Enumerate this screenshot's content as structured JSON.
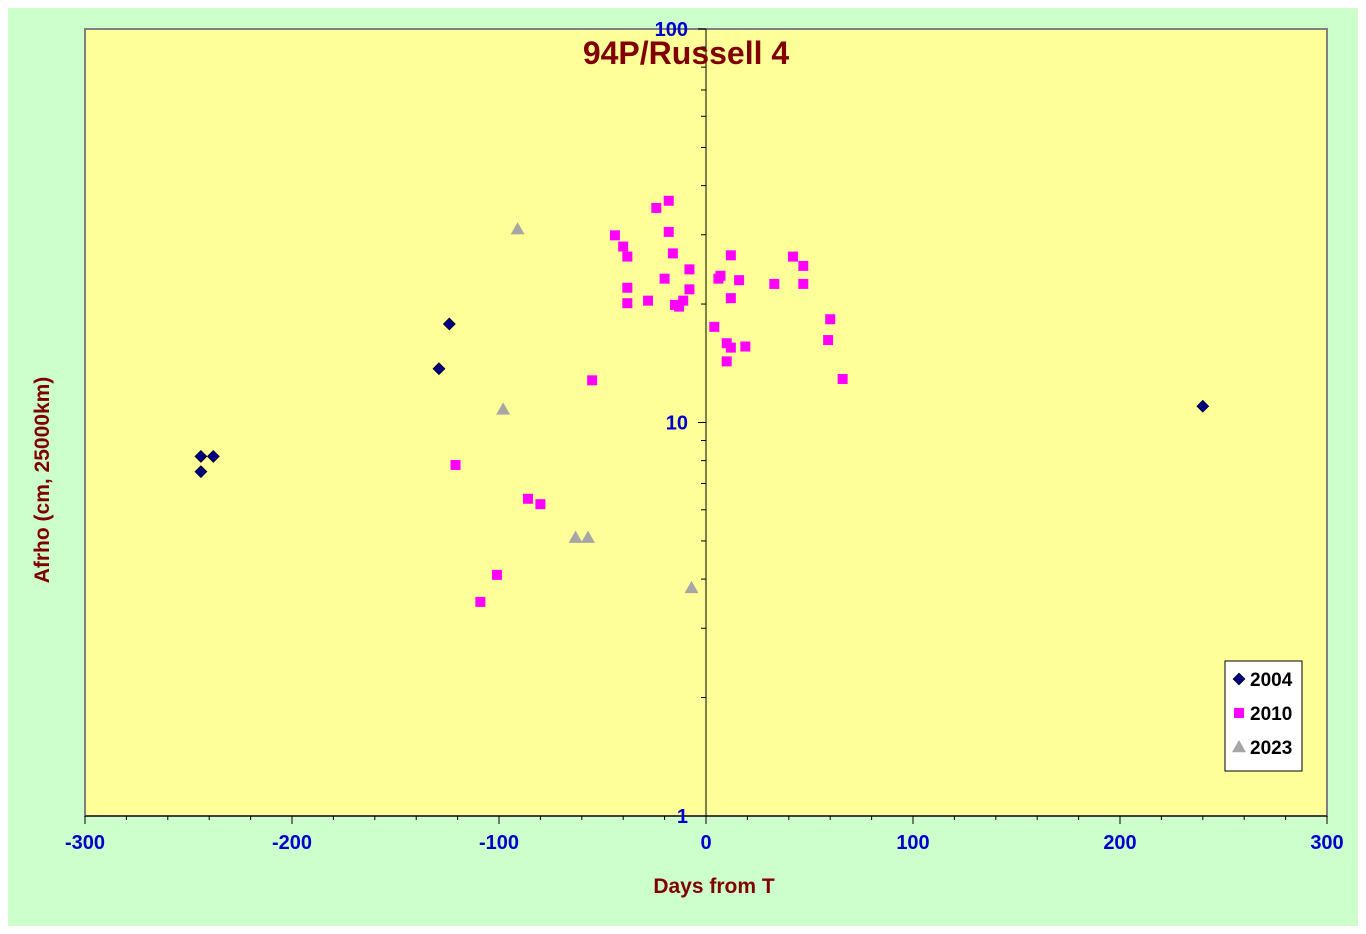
{
  "chart_data": {
    "type": "scatter",
    "title": "94P/Russell 4",
    "xlabel": "Days from T",
    "ylabel": "Afrho (cm, 25000km)",
    "xlim": [
      -300,
      300
    ],
    "ylim": [
      1,
      100
    ],
    "y_scale": "log",
    "x_ticks": [
      -300,
      -200,
      -100,
      0,
      100,
      200,
      300
    ],
    "y_ticks": [
      1,
      10,
      100
    ],
    "grid": false,
    "legend_position": "bottom-right",
    "colors": {
      "background": "#ccffcc",
      "plot_area": "#ffff99",
      "title": "#800000",
      "ticks": "#0000cc"
    },
    "series": [
      {
        "name": "2004",
        "marker": "diamond",
        "color": "#000080",
        "points": [
          [
            -244,
            8.2
          ],
          [
            -244,
            7.5
          ],
          [
            -238,
            8.2
          ],
          [
            -129,
            13.7
          ],
          [
            -124,
            17.8
          ],
          [
            240,
            11.0
          ]
        ]
      },
      {
        "name": "2010",
        "marker": "square",
        "color": "#ff00ff",
        "points": [
          [
            -121,
            7.8
          ],
          [
            -109,
            3.5
          ],
          [
            -101,
            4.1
          ],
          [
            -86,
            6.4
          ],
          [
            -80,
            6.2
          ],
          [
            -55,
            12.8
          ],
          [
            -44,
            29.9
          ],
          [
            -40,
            28.0
          ],
          [
            -38,
            26.4
          ],
          [
            -38,
            22.0
          ],
          [
            -38,
            20.1
          ],
          [
            -28,
            20.4
          ],
          [
            -24,
            35.1
          ],
          [
            -20,
            23.2
          ],
          [
            -18,
            30.5
          ],
          [
            -18,
            36.6
          ],
          [
            -16,
            26.9
          ],
          [
            -15,
            19.9
          ],
          [
            -13,
            19.7
          ],
          [
            -11,
            20.4
          ],
          [
            -8,
            24.5
          ],
          [
            -8,
            21.8
          ],
          [
            4,
            17.5
          ],
          [
            6,
            23.2
          ],
          [
            7,
            23.6
          ],
          [
            10,
            14.3
          ],
          [
            10,
            15.9
          ],
          [
            12,
            15.5
          ],
          [
            12,
            20.7
          ],
          [
            12,
            26.6
          ],
          [
            16,
            23.0
          ],
          [
            19,
            15.6
          ],
          [
            33,
            22.5
          ],
          [
            42,
            26.4
          ],
          [
            47,
            25.0
          ],
          [
            47,
            22.5
          ],
          [
            59,
            16.2
          ],
          [
            60,
            18.3
          ],
          [
            66,
            12.9
          ]
        ]
      },
      {
        "name": "2023",
        "marker": "triangle",
        "color": "#a6a6a6",
        "points": [
          [
            -91,
            31.0
          ],
          [
            -98,
            10.8
          ],
          [
            -63,
            5.1
          ],
          [
            -57,
            5.1
          ],
          [
            -7,
            3.8
          ]
        ]
      }
    ]
  }
}
